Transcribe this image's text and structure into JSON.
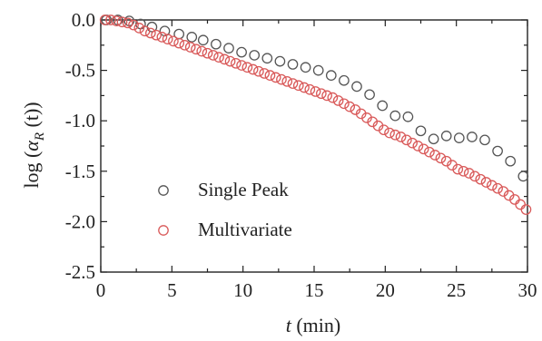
{
  "chart_data": {
    "type": "scatter",
    "xlabel": {
      "var": "t",
      "unit": " (min)"
    },
    "ylabel": {
      "prefix": "log (",
      "var": "α",
      "sub": "R",
      "suffix": " (t))"
    },
    "xlim": [
      0,
      30
    ],
    "ylim": [
      -2.5,
      0.0
    ],
    "xticks": [
      "0",
      "5",
      "10",
      "15",
      "20",
      "25",
      "30"
    ],
    "yticks": [
      "0.0",
      "-0.5",
      "-1.0",
      "-1.5",
      "-2.0",
      "-2.5"
    ],
    "grid": false,
    "legend_position": "bottom-left",
    "series": [
      {
        "name": "Single Peak",
        "color": "#555555",
        "marker": "open-circle",
        "x": [
          0.4,
          1.2,
          2.0,
          2.8,
          3.6,
          4.5,
          5.5,
          6.4,
          7.2,
          8.1,
          9.0,
          9.9,
          10.8,
          11.7,
          12.6,
          13.5,
          14.4,
          15.3,
          16.2,
          17.1,
          18.0,
          18.9,
          19.8,
          20.7,
          21.6,
          22.5,
          23.4,
          24.3,
          25.2,
          26.1,
          27.0,
          27.9,
          28.8,
          29.7
        ],
        "y": [
          0.0,
          0.0,
          -0.01,
          -0.04,
          -0.07,
          -0.11,
          -0.14,
          -0.17,
          -0.2,
          -0.24,
          -0.28,
          -0.32,
          -0.35,
          -0.38,
          -0.41,
          -0.44,
          -0.47,
          -0.5,
          -0.55,
          -0.6,
          -0.66,
          -0.74,
          -0.85,
          -0.95,
          -0.96,
          -1.1,
          -1.18,
          -1.15,
          -1.17,
          -1.16,
          -1.19,
          -1.3,
          -1.4,
          -1.55
        ]
      },
      {
        "name": "Multivariate",
        "color": "#d95a5a",
        "marker": "open-circle",
        "x": [
          0.3,
          0.7,
          1.1,
          1.5,
          1.9,
          2.3,
          2.7,
          3.1,
          3.5,
          3.9,
          4.3,
          4.7,
          5.1,
          5.5,
          5.9,
          6.3,
          6.7,
          7.1,
          7.5,
          7.9,
          8.3,
          8.7,
          9.1,
          9.5,
          9.9,
          10.3,
          10.7,
          11.1,
          11.5,
          11.9,
          12.3,
          12.7,
          13.1,
          13.5,
          13.9,
          14.3,
          14.7,
          15.1,
          15.5,
          15.9,
          16.3,
          16.7,
          17.1,
          17.5,
          17.9,
          18.3,
          18.7,
          19.1,
          19.5,
          19.9,
          20.3,
          20.7,
          21.1,
          21.5,
          21.9,
          22.3,
          22.7,
          23.1,
          23.5,
          23.9,
          24.3,
          24.7,
          25.1,
          25.5,
          25.9,
          26.3,
          26.7,
          27.1,
          27.5,
          27.9,
          28.3,
          28.7,
          29.1,
          29.5,
          29.9
        ],
        "y": [
          0.0,
          0.0,
          -0.01,
          -0.02,
          -0.03,
          -0.05,
          -0.08,
          -0.11,
          -0.13,
          -0.15,
          -0.17,
          -0.19,
          -0.21,
          -0.23,
          -0.25,
          -0.27,
          -0.29,
          -0.31,
          -0.33,
          -0.35,
          -0.37,
          -0.39,
          -0.41,
          -0.43,
          -0.45,
          -0.47,
          -0.49,
          -0.51,
          -0.53,
          -0.55,
          -0.57,
          -0.59,
          -0.61,
          -0.63,
          -0.65,
          -0.67,
          -0.69,
          -0.71,
          -0.73,
          -0.75,
          -0.77,
          -0.8,
          -0.83,
          -0.86,
          -0.89,
          -0.93,
          -0.97,
          -1.01,
          -1.05,
          -1.09,
          -1.12,
          -1.14,
          -1.16,
          -1.19,
          -1.22,
          -1.25,
          -1.28,
          -1.31,
          -1.34,
          -1.37,
          -1.4,
          -1.44,
          -1.48,
          -1.5,
          -1.52,
          -1.55,
          -1.58,
          -1.61,
          -1.64,
          -1.67,
          -1.7,
          -1.74,
          -1.78,
          -1.83,
          -1.88
        ]
      }
    ]
  }
}
